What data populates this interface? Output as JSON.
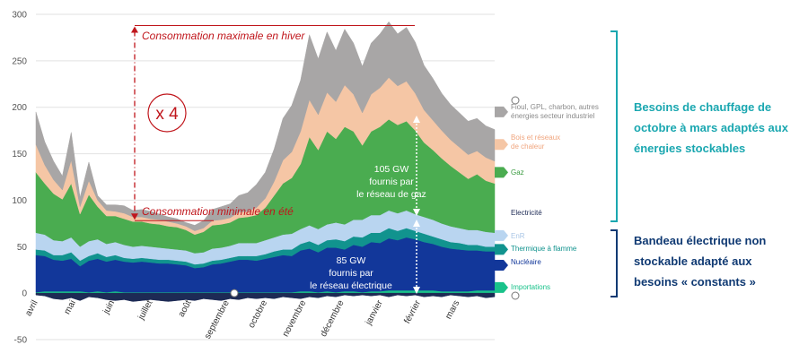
{
  "colors": {
    "importations": "#19c28a",
    "nucleaire": "#12379a",
    "thermique": "#11938e",
    "enr": "#b9d5f0",
    "gaz": "#4aac50",
    "chaleur": "#f5c6a5",
    "fioul": "#a8a6a6",
    "red": "#c0161c",
    "teal": "#1aa7b0",
    "navy": "#103a73"
  },
  "chart_data": {
    "type": "area",
    "stacked": true,
    "ylim": [
      -50,
      300
    ],
    "yticks": [
      -50,
      0,
      50,
      100,
      150,
      200,
      250,
      300
    ],
    "x_range": [
      0,
      52
    ],
    "month_labels": [
      {
        "label": "avril",
        "x": 0
      },
      {
        "label": "mai",
        "x": 4.3
      },
      {
        "label": "juin",
        "x": 8.7
      },
      {
        "label": "juillet",
        "x": 13
      },
      {
        "label": "août",
        "x": 17.4
      },
      {
        "label": "septembre",
        "x": 21.7
      },
      {
        "label": "octobre",
        "x": 26
      },
      {
        "label": "novembre",
        "x": 30.4
      },
      {
        "label": "décembre",
        "x": 34.7
      },
      {
        "label": "janvier",
        "x": 39.1
      },
      {
        "label": "février",
        "x": 43.4
      },
      {
        "label": "mars",
        "x": 47.8
      }
    ],
    "x": [
      0,
      1,
      2,
      3,
      4,
      5,
      6,
      7,
      8,
      9,
      10,
      11,
      12,
      13,
      14,
      15,
      16,
      17,
      18,
      19,
      20,
      21,
      22,
      23,
      24,
      25,
      26,
      27,
      28,
      29,
      30,
      31,
      32,
      33,
      34,
      35,
      36,
      37,
      38,
      39,
      40,
      41,
      42,
      43,
      44,
      45,
      46,
      47,
      48,
      49,
      50,
      51,
      52
    ],
    "lower_line": {
      "name": "exports",
      "color": "#1d2a55",
      "values": [
        -2,
        -3,
        -6,
        -7,
        -5,
        -8,
        -4,
        -5,
        -7,
        -8,
        -7,
        -9,
        -8,
        -7,
        -8,
        -9,
        -8,
        -7,
        -8,
        -6,
        -7,
        -8,
        -6,
        -7,
        -5,
        -6,
        -5,
        -6,
        -4,
        -5,
        -6,
        -4,
        -5,
        -3,
        -4,
        -2,
        -3,
        -2,
        -3,
        -2,
        -4,
        -2,
        -3,
        -2,
        -4,
        -3,
        -4,
        -2,
        -3,
        -4,
        -3,
        -5,
        -4
      ]
    },
    "series": [
      {
        "name": "Importations",
        "color": "#19c28a",
        "values": [
          1,
          2,
          2,
          2,
          2,
          2,
          1,
          2,
          1,
          2,
          1,
          1,
          1,
          1,
          1,
          1,
          1,
          1,
          1,
          1,
          1,
          1,
          1,
          1,
          1,
          1,
          1,
          1,
          1,
          1,
          2,
          2,
          1,
          2,
          1,
          2,
          2,
          1,
          2,
          2,
          3,
          3,
          3,
          3,
          3,
          3,
          2,
          2,
          2,
          2,
          3,
          3,
          3
        ]
      },
      {
        "name": "Nucléaire",
        "color": "#12379a",
        "values": [
          40,
          38,
          34,
          33,
          35,
          27,
          34,
          35,
          33,
          34,
          33,
          32,
          33,
          32,
          31,
          31,
          30,
          29,
          26,
          27,
          30,
          31,
          33,
          35,
          35,
          34,
          36,
          38,
          40,
          39,
          44,
          46,
          43,
          47,
          48,
          45,
          50,
          49,
          53,
          52,
          56,
          54,
          57,
          55,
          52,
          50,
          48,
          46,
          45,
          44,
          43,
          42,
          42
        ]
      },
      {
        "name": "Thermique à flamme",
        "color": "#11938e",
        "values": [
          6,
          6,
          5,
          6,
          7,
          6,
          5,
          6,
          5,
          5,
          4,
          4,
          4,
          4,
          4,
          4,
          4,
          4,
          4,
          4,
          4,
          4,
          4,
          4,
          4,
          5,
          5,
          6,
          6,
          7,
          7,
          8,
          8,
          8,
          9,
          9,
          9,
          10,
          10,
          11,
          11,
          10,
          10,
          9,
          9,
          8,
          8,
          7,
          7,
          6,
          6,
          5,
          5
        ]
      },
      {
        "name": "EnR",
        "color": "#b9d5f0",
        "values": [
          18,
          17,
          16,
          15,
          16,
          15,
          16,
          15,
          14,
          14,
          14,
          13,
          13,
          13,
          13,
          12,
          12,
          12,
          12,
          12,
          13,
          13,
          13,
          14,
          14,
          14,
          15,
          15,
          16,
          17,
          16,
          17,
          17,
          17,
          18,
          18,
          18,
          19,
          19,
          19,
          19,
          19,
          19,
          18,
          18,
          18,
          17,
          17,
          16,
          16,
          16,
          16,
          15
        ]
      },
      {
        "name": "Gaz",
        "color": "#4aac50",
        "values": [
          65,
          55,
          50,
          45,
          58,
          35,
          50,
          35,
          30,
          28,
          28,
          27,
          26,
          25,
          25,
          24,
          24,
          22,
          20,
          22,
          25,
          25,
          25,
          27,
          28,
          30,
          35,
          45,
          55,
          60,
          70,
          95,
          85,
          100,
          90,
          105,
          95,
          80,
          90,
          95,
          98,
          95,
          96,
          90,
          80,
          75,
          70,
          65,
          60,
          55,
          60,
          55,
          53
        ]
      },
      {
        "name": "Bois et réseaux de chaleur",
        "color": "#f5c6a5",
        "values": [
          30,
          20,
          15,
          10,
          25,
          8,
          15,
          7,
          6,
          5,
          6,
          5,
          5,
          5,
          5,
          5,
          4,
          4,
          4,
          4,
          5,
          5,
          5,
          6,
          6,
          8,
          10,
          15,
          25,
          28,
          35,
          40,
          38,
          42,
          40,
          45,
          40,
          35,
          40,
          42,
          45,
          42,
          43,
          40,
          35,
          32,
          30,
          28,
          27,
          26,
          25,
          25,
          24
        ]
      },
      {
        "name": "Fioul, GPL, charbon, autres énergies secteur industriel",
        "color": "#a8a6a6",
        "values": [
          35,
          25,
          20,
          15,
          30,
          10,
          20,
          5,
          6,
          7,
          8,
          7,
          8,
          8,
          6,
          5,
          5,
          4,
          6,
          8,
          12,
          14,
          15,
          18,
          20,
          25,
          28,
          35,
          45,
          50,
          55,
          70,
          60,
          65,
          55,
          60,
          55,
          50,
          55,
          58,
          60,
          56,
          58,
          55,
          48,
          45,
          40,
          38,
          37,
          36,
          35,
          34,
          34
        ]
      }
    ],
    "legend_labels": {
      "fioul": [
        "Fioul, GPL, charbon, autres",
        "énergies secteur industriel"
      ],
      "chaleur": [
        "Bois et réseaux",
        "de chaleur"
      ],
      "gaz": "Gaz",
      "electricite": "Electricité",
      "enr": "EnR",
      "thermique": "Thermique à flamme",
      "nucleaire": "Nucléaire",
      "importations": "Importations"
    },
    "annotations": {
      "max_label": "Consommation maximale en hiver",
      "min_label": "Consommation minimale en été",
      "ratio": "x 4",
      "gas_text": [
        "105 GW",
        "fournis par",
        "le réseau de gaz"
      ],
      "elec_text": [
        "85 GW",
        "fournis par",
        "le réseau électrique"
      ],
      "max_value": 288,
      "min_value": 78
    }
  },
  "side": {
    "heating": "Besoins de chauffage de octobre à mars adaptés aux énergies stockables",
    "baseband": "Bandeau électrique non stockable adapté aux besoins « constants »"
  }
}
